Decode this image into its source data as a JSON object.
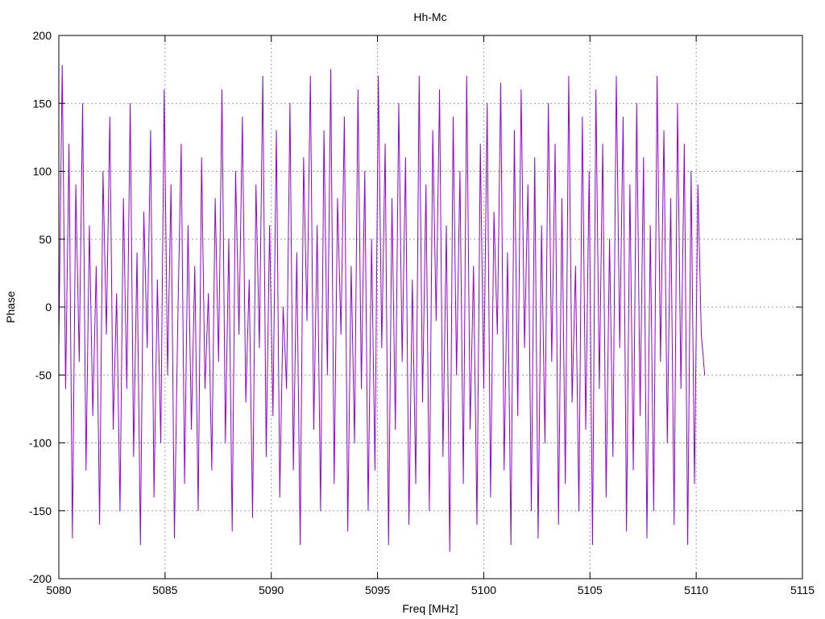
{
  "chart_data": {
    "type": "line",
    "title": "Hh-Mc",
    "xlabel": "Freq [MHz]",
    "ylabel": "Phase",
    "xlim": [
      5080,
      5115
    ],
    "ylim": [
      -200,
      200
    ],
    "xticks": [
      5080,
      5085,
      5090,
      5095,
      5100,
      5105,
      5110,
      5115
    ],
    "yticks": [
      -200,
      -150,
      -100,
      -50,
      0,
      50,
      100,
      150,
      200
    ],
    "grid": true,
    "legend": "none",
    "series": [
      {
        "name": "Hh-Mc",
        "color": "#9400d3",
        "x_start": 5080,
        "x_step": 0.16,
        "values": [
          -30,
          178,
          -60,
          120,
          -170,
          90,
          -40,
          150,
          -120,
          60,
          -80,
          30,
          -160,
          100,
          -20,
          140,
          -90,
          10,
          -150,
          80,
          -60,
          150,
          -110,
          40,
          -175,
          70,
          -30,
          130,
          -140,
          20,
          -100,
          160,
          -50,
          90,
          -170,
          -10,
          120,
          -130,
          60,
          -90,
          30,
          -150,
          110,
          -60,
          10,
          -120,
          80,
          -40,
          160,
          -100,
          50,
          -165,
          100,
          -20,
          140,
          -70,
          20,
          -155,
          90,
          -30,
          170,
          -110,
          60,
          -80,
          130,
          -140,
          0,
          -60,
          150,
          -120,
          40,
          -175,
          110,
          -10,
          170,
          -90,
          60,
          -150,
          130,
          -50,
          175,
          -130,
          80,
          -20,
          140,
          -165,
          30,
          -100,
          160,
          -60,
          100,
          -150,
          50,
          -120,
          170,
          -30,
          120,
          -175,
          80,
          -90,
          150,
          -40,
          110,
          -160,
          20,
          -130,
          170,
          -70,
          90,
          -150,
          130,
          -10,
          160,
          -110,
          60,
          -180,
          140,
          -50,
          100,
          -130,
          170,
          -90,
          30,
          -160,
          120,
          -60,
          150,
          -140,
          70,
          -20,
          165,
          -120,
          40,
          -175,
          130,
          -80,
          160,
          -30,
          90,
          -150,
          110,
          -170,
          60,
          -100,
          150,
          -40,
          120,
          -160,
          80,
          -130,
          170,
          -70,
          30,
          -150,
          140,
          -90,
          100,
          -175,
          160,
          -60,
          120,
          -140,
          50,
          -110,
          170,
          -30,
          140,
          -165,
          90,
          -120,
          150,
          -80,
          110,
          -170,
          60,
          -150,
          170,
          -40,
          130,
          -100,
          80,
          -160,
          150,
          -60,
          120,
          -175,
          100,
          -130,
          90,
          -20,
          -50
        ]
      }
    ]
  }
}
